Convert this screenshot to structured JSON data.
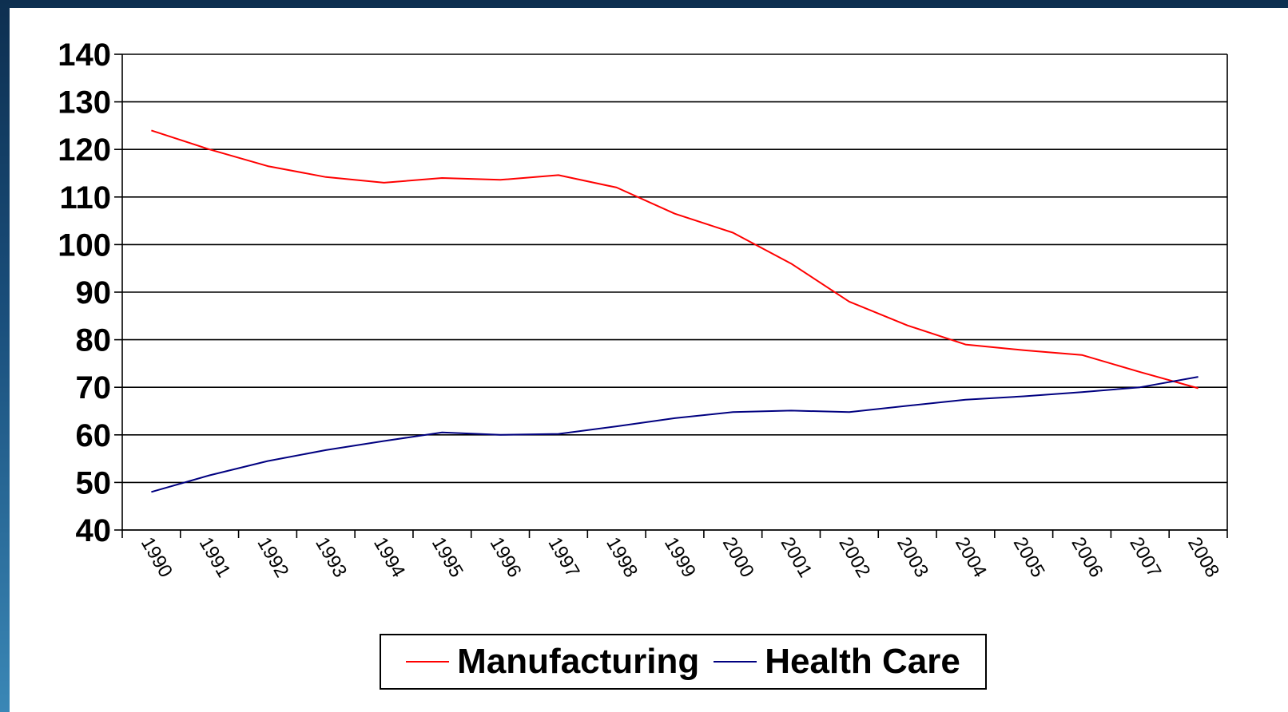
{
  "chart_data": {
    "type": "line",
    "title": "",
    "xlabel": "",
    "ylabel": "",
    "categories": [
      "1990",
      "1991",
      "1992",
      "1993",
      "1994",
      "1995",
      "1996",
      "1997",
      "1998",
      "1999",
      "2000",
      "2001",
      "2002",
      "2003",
      "2004",
      "2005",
      "2006",
      "2007",
      "2008"
    ],
    "ylim": [
      40,
      140
    ],
    "yticks": [
      40,
      50,
      60,
      70,
      80,
      90,
      100,
      110,
      120,
      130,
      140
    ],
    "grid": true,
    "legend_position": "bottom",
    "series": [
      {
        "name": "Manufacturing",
        "color": "#ff0000",
        "values": [
          124,
          120,
          116.5,
          114.2,
          113,
          114,
          113.6,
          114.6,
          112,
          106.5,
          102.5,
          96,
          88,
          83,
          79,
          77.8,
          76.8,
          73.2,
          69.8
        ]
      },
      {
        "name": "Health Care",
        "color": "#000080",
        "values": [
          48,
          51.5,
          54.5,
          56.8,
          58.7,
          60.5,
          60,
          60.2,
          61.8,
          63.5,
          64.8,
          65.1,
          64.8,
          66.1,
          67.4,
          68.1,
          69,
          70,
          72.2
        ]
      }
    ]
  }
}
